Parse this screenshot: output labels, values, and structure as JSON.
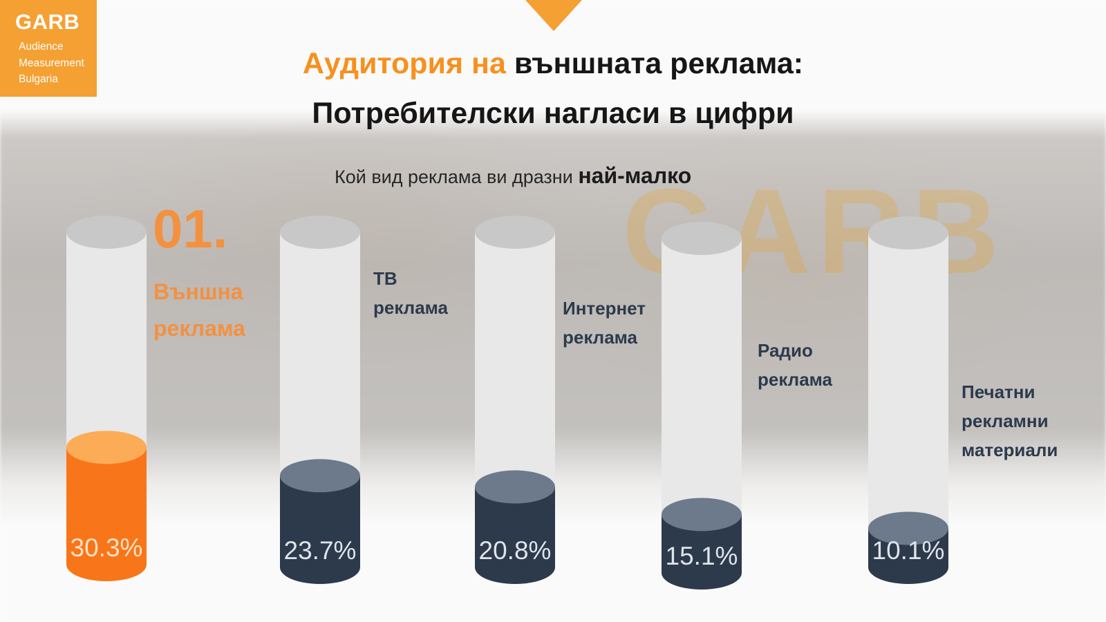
{
  "logo": {
    "name": "GARB",
    "lines": [
      "Audience",
      "Measurement",
      "Bulgaria"
    ]
  },
  "title": {
    "line1_highlight": "Аудитория на",
    "line1_rest": "външната реклама:",
    "line2": "Потребителски нагласи в цифри"
  },
  "subtitle": {
    "text": "Кой вид реклама ви дразни",
    "emphasis": "най-малко"
  },
  "rank_label": "01.",
  "colors": {
    "accent": "#f97519",
    "accent_light": "#fcac56",
    "dark": "#2c3a4c",
    "dark_top": "#6c7a8c",
    "tube": "#e8e8e8",
    "tube_top": "#c8c8c8"
  },
  "chart_data": {
    "type": "bar",
    "title": "Кой вид реклама ви дразни най-малко",
    "categories": [
      [
        "Външна",
        "реклама"
      ],
      [
        "ТВ",
        "реклама"
      ],
      [
        "Интернет",
        "реклама"
      ],
      [
        "Радио",
        "реклама"
      ],
      [
        "Печатни",
        "рекламни",
        "материали"
      ]
    ],
    "values": [
      30.3,
      23.7,
      20.8,
      15.1,
      10.1
    ],
    "value_labels": [
      "30.3%",
      "23.7%",
      "20.8%",
      "15.1%",
      "10.1%"
    ],
    "unit": "%",
    "highlight_index": 0
  }
}
